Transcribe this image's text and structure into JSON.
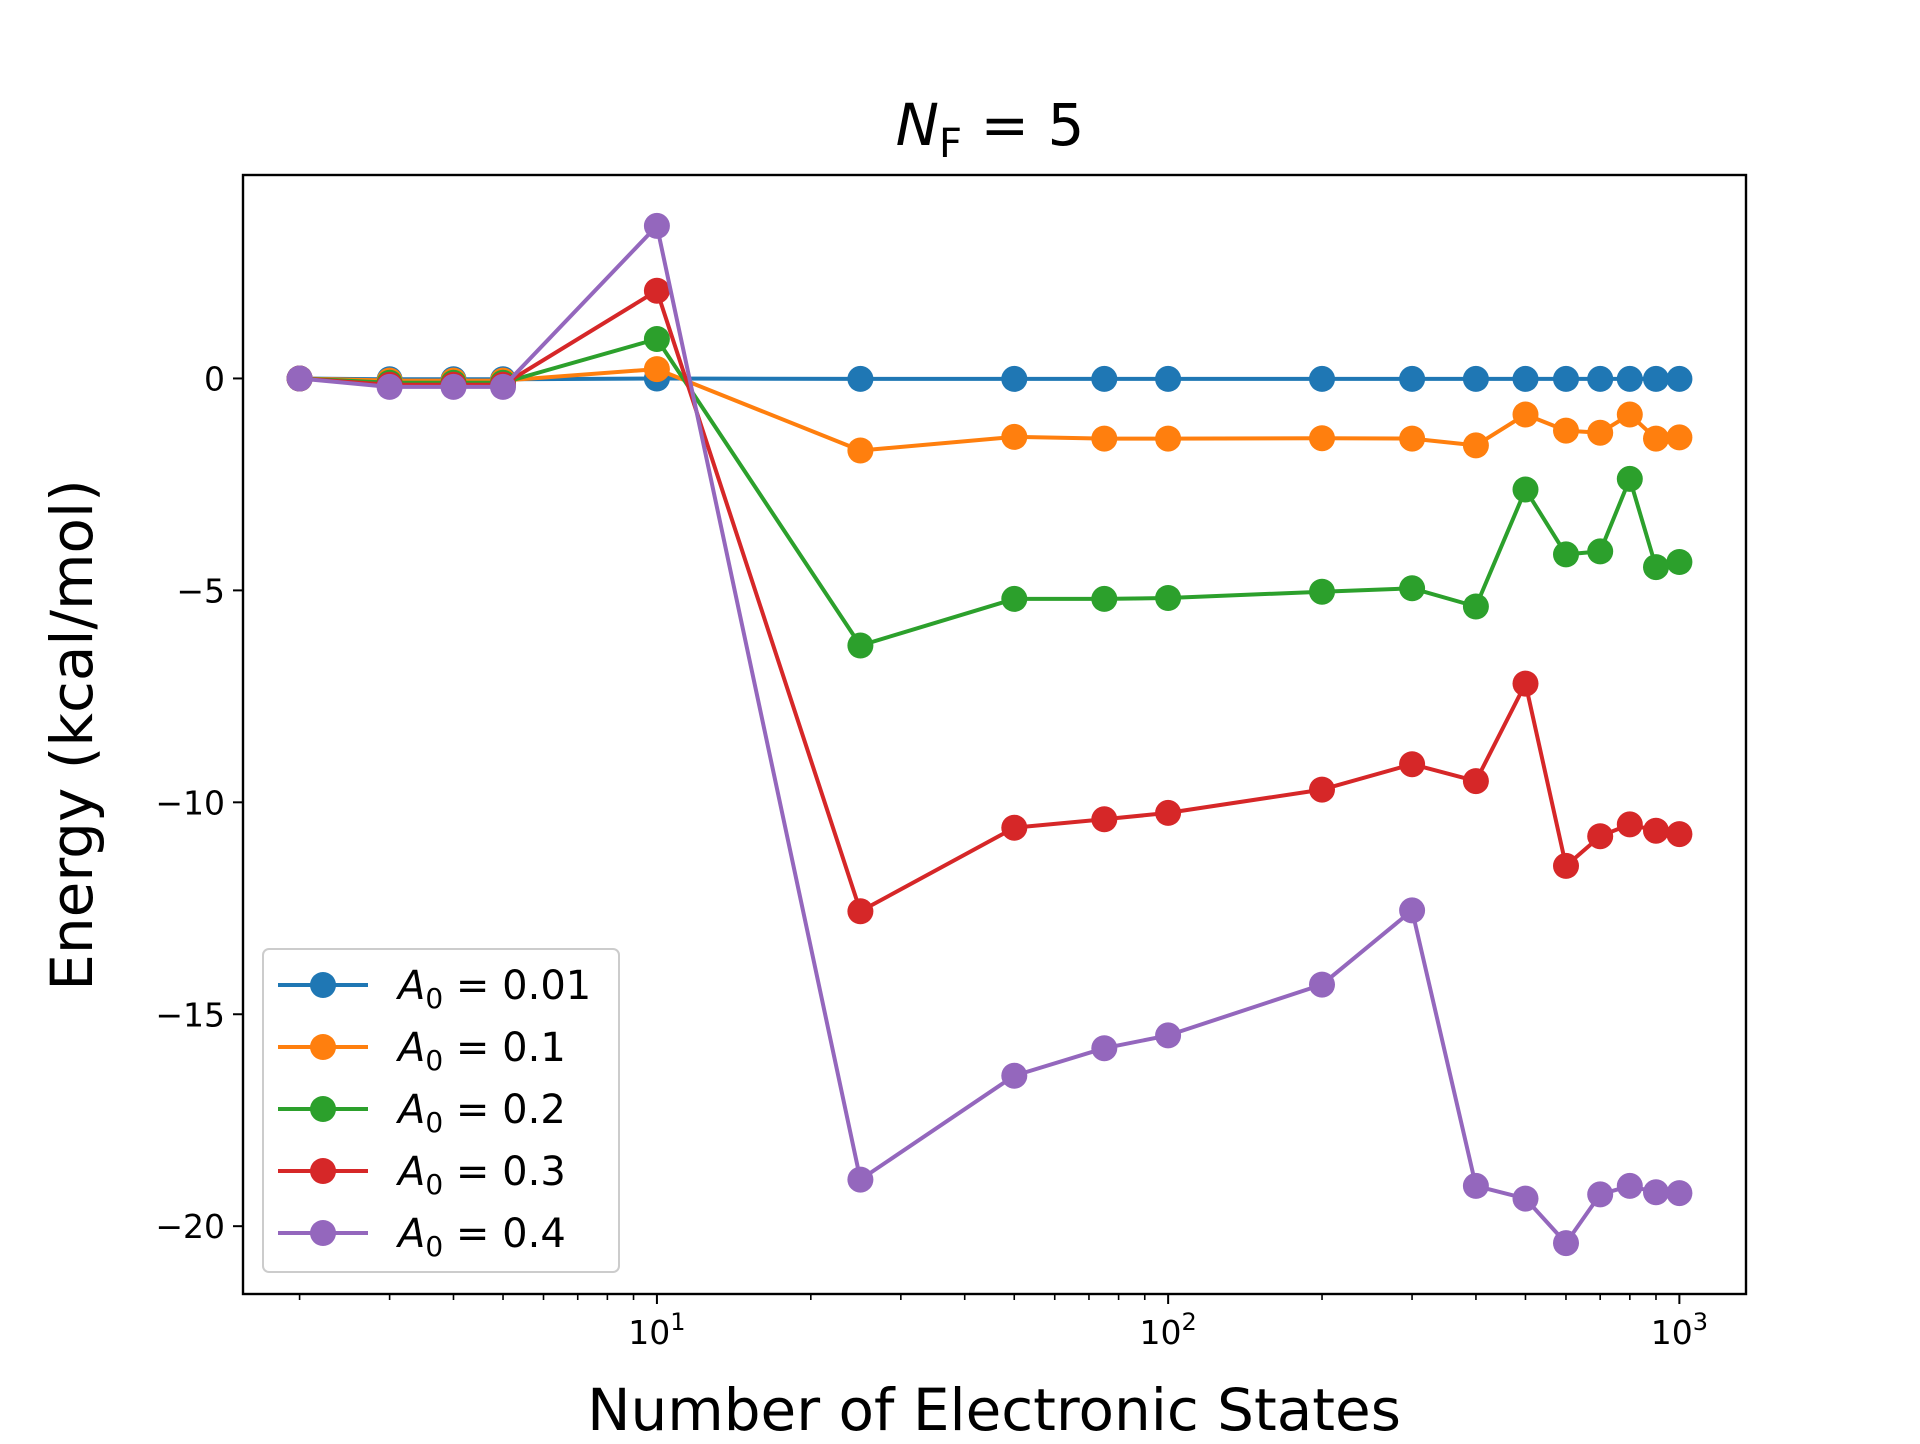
{
  "chart_data": {
    "type": "line",
    "title": {
      "italic": "N",
      "sub": "F",
      "rest": " = 5"
    },
    "xlabel": "Number of Electronic States",
    "ylabel": "Energy (kcal/mol)",
    "xscale": "log",
    "xlim": [
      1.55,
      1350
    ],
    "ylim": [
      -21.6,
      4.8
    ],
    "yticks": [
      0,
      -5,
      -10,
      -15,
      -20
    ],
    "ytick_labels": [
      "0",
      "−5",
      "−10",
      "−15",
      "−20"
    ],
    "xticks": [
      {
        "value": 10,
        "base": "10",
        "exp": "1"
      },
      {
        "value": 100,
        "base": "10",
        "exp": "2"
      },
      {
        "value": 1000,
        "base": "10",
        "exp": "3"
      }
    ],
    "grid": false,
    "legend_position": "lower-left",
    "x": [
      2,
      3,
      4,
      5,
      10,
      25,
      50,
      75,
      100,
      200,
      300,
      400,
      500,
      600,
      700,
      800,
      900,
      1000
    ],
    "series": [
      {
        "name": "A0 = 0.01",
        "label": {
          "sym": "A",
          "sub": "0",
          "rest": " = 0.01"
        },
        "color": "#1f77b4",
        "values": [
          0,
          -0.02,
          -0.02,
          -0.02,
          0.0,
          -0.01,
          -0.01,
          -0.01,
          -0.01,
          -0.01,
          -0.01,
          -0.01,
          -0.01,
          -0.01,
          -0.01,
          -0.01,
          -0.01,
          -0.01
        ]
      },
      {
        "name": "A0 = 0.1",
        "label": {
          "sym": "A",
          "sub": "0",
          "rest": " = 0.1"
        },
        "color": "#ff7f0e",
        "values": [
          0,
          -0.05,
          -0.05,
          -0.05,
          0.22,
          -1.7,
          -1.38,
          -1.42,
          -1.42,
          -1.41,
          -1.42,
          -1.58,
          -0.85,
          -1.23,
          -1.28,
          -0.85,
          -1.42,
          -1.39
        ]
      },
      {
        "name": "A0 = 0.2",
        "label": {
          "sym": "A",
          "sub": "0",
          "rest": " = 0.2"
        },
        "color": "#2ca02c",
        "values": [
          0,
          -0.1,
          -0.1,
          -0.1,
          0.93,
          -6.3,
          -5.2,
          -5.2,
          -5.18,
          -5.03,
          -4.95,
          -5.38,
          -2.62,
          -4.15,
          -4.08,
          -2.37,
          -4.45,
          -4.33
        ]
      },
      {
        "name": "A0 = 0.3",
        "label": {
          "sym": "A",
          "sub": "0",
          "rest": " = 0.3"
        },
        "color": "#d62728",
        "values": [
          0,
          -0.15,
          -0.15,
          -0.15,
          2.07,
          -12.57,
          -10.6,
          -10.4,
          -10.25,
          -9.7,
          -9.1,
          -9.5,
          -7.2,
          -11.5,
          -10.8,
          -10.52,
          -10.67,
          -10.75
        ]
      },
      {
        "name": "A0 = 0.4",
        "label": {
          "sym": "A",
          "sub": "0",
          "rest": " = 0.4"
        },
        "color": "#9467bd",
        "values": [
          0,
          -0.2,
          -0.2,
          -0.2,
          3.6,
          -18.9,
          -16.45,
          -15.8,
          -15.5,
          -14.3,
          -12.55,
          -19.05,
          -19.35,
          -20.4,
          -19.25,
          -19.05,
          -19.2,
          -19.22
        ]
      }
    ]
  }
}
